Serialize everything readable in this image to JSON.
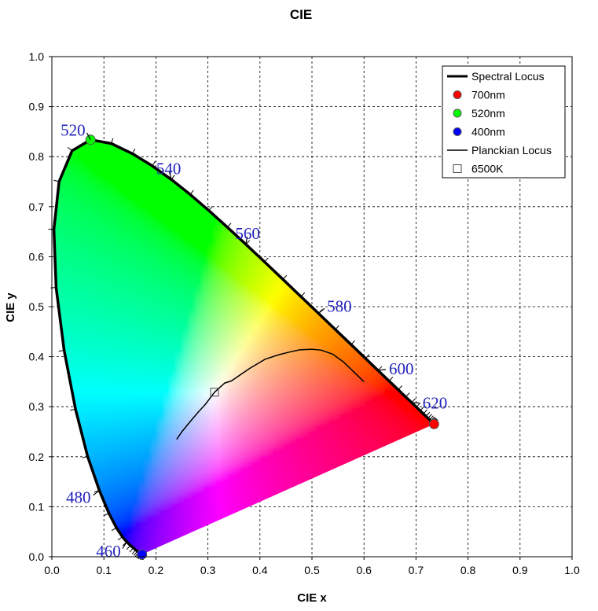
{
  "chart_data": {
    "type": "scatter",
    "title": "CIE",
    "xlabel": "CIE x",
    "ylabel": "CIE y",
    "xlim": [
      0,
      1
    ],
    "ylim": [
      0,
      1
    ],
    "x_ticks": [
      "0.0",
      "0.1",
      "0.2",
      "0.3",
      "0.4",
      "0.5",
      "0.6",
      "0.7",
      "0.8",
      "0.9",
      "1.0"
    ],
    "y_ticks": [
      "0.0",
      "0.1",
      "0.2",
      "0.3",
      "0.4",
      "0.5",
      "0.6",
      "0.7",
      "0.8",
      "0.9",
      "1.0"
    ],
    "grid": true,
    "legend_position": "top-right",
    "legend": [
      {
        "label": "Spectral Locus",
        "kind": "line",
        "color": "#000000"
      },
      {
        "label": "700nm",
        "kind": "marker",
        "color": "#ff0000"
      },
      {
        "label": "520nm",
        "kind": "marker",
        "color": "#00ff00"
      },
      {
        "label": "400nm",
        "kind": "marker",
        "color": "#0000ff"
      },
      {
        "label": "Planckian Locus",
        "kind": "thin-line",
        "color": "#000000"
      },
      {
        "label": "6500K",
        "kind": "square",
        "color": "#000000"
      }
    ],
    "spectral_locus": [
      [
        0.1741,
        0.005
      ],
      [
        0.1738,
        0.0049
      ],
      [
        0.1736,
        0.0049
      ],
      [
        0.1733,
        0.0048
      ],
      [
        0.173,
        0.0048
      ],
      [
        0.1726,
        0.0048
      ],
      [
        0.1721,
        0.0048
      ],
      [
        0.1714,
        0.0051
      ],
      [
        0.1703,
        0.0058
      ],
      [
        0.1689,
        0.0069
      ],
      [
        0.1669,
        0.0086
      ],
      [
        0.1644,
        0.0109
      ],
      [
        0.1611,
        0.0138
      ],
      [
        0.1566,
        0.0177
      ],
      [
        0.151,
        0.0227
      ],
      [
        0.144,
        0.0297
      ],
      [
        0.1355,
        0.0399
      ],
      [
        0.1241,
        0.0578
      ],
      [
        0.1096,
        0.0868
      ],
      [
        0.0913,
        0.1327
      ],
      [
        0.0687,
        0.2007
      ],
      [
        0.0454,
        0.295
      ],
      [
        0.0235,
        0.4127
      ],
      [
        0.0082,
        0.5384
      ],
      [
        0.0039,
        0.6548
      ],
      [
        0.0139,
        0.7502
      ],
      [
        0.0389,
        0.812
      ],
      [
        0.0743,
        0.8338
      ],
      [
        0.1142,
        0.8262
      ],
      [
        0.1547,
        0.8059
      ],
      [
        0.1929,
        0.7816
      ],
      [
        0.2296,
        0.7543
      ],
      [
        0.2658,
        0.7243
      ],
      [
        0.3016,
        0.6923
      ],
      [
        0.3373,
        0.6589
      ],
      [
        0.3731,
        0.6245
      ],
      [
        0.4087,
        0.5896
      ],
      [
        0.4441,
        0.5547
      ],
      [
        0.4788,
        0.5202
      ],
      [
        0.5125,
        0.4866
      ],
      [
        0.5448,
        0.4544
      ],
      [
        0.5752,
        0.4242
      ],
      [
        0.6029,
        0.3965
      ],
      [
        0.627,
        0.3725
      ],
      [
        0.6482,
        0.3514
      ],
      [
        0.6658,
        0.334
      ],
      [
        0.6801,
        0.3197
      ],
      [
        0.6915,
        0.3083
      ],
      [
        0.7006,
        0.2993
      ],
      [
        0.7079,
        0.292
      ],
      [
        0.714,
        0.2859
      ],
      [
        0.719,
        0.2809
      ],
      [
        0.723,
        0.277
      ],
      [
        0.726,
        0.274
      ],
      [
        0.7283,
        0.2717
      ],
      [
        0.73,
        0.27
      ],
      [
        0.7311,
        0.2689
      ],
      [
        0.732,
        0.268
      ],
      [
        0.7327,
        0.2673
      ],
      [
        0.7334,
        0.2666
      ],
      [
        0.734,
        0.266
      ],
      [
        0.7344,
        0.2656
      ],
      [
        0.7346,
        0.2654
      ],
      [
        0.7347,
        0.2653
      ]
    ],
    "wavelength_labels": [
      {
        "text": "460",
        "x": 0.144,
        "y": 0.0297
      },
      {
        "text": "480",
        "x": 0.0913,
        "y": 0.1327
      },
      {
        "text": "520",
        "x": 0.0743,
        "y": 0.8338
      },
      {
        "text": "540",
        "x": 0.2296,
        "y": 0.7543
      },
      {
        "text": "560",
        "x": 0.3731,
        "y": 0.6245
      },
      {
        "text": "580",
        "x": 0.5125,
        "y": 0.4866
      },
      {
        "text": "600",
        "x": 0.627,
        "y": 0.3725
      },
      {
        "text": "620",
        "x": 0.6915,
        "y": 0.3083
      }
    ],
    "points": [
      {
        "name": "700nm",
        "x": 0.7347,
        "y": 0.2653,
        "color": "#ff0000"
      },
      {
        "name": "520nm",
        "x": 0.0743,
        "y": 0.8338,
        "color": "#00ff00"
      },
      {
        "name": "400nm",
        "x": 0.1733,
        "y": 0.0048,
        "color": "#0000ff"
      }
    ],
    "planckian_locus": [
      [
        0.2399,
        0.2348
      ],
      [
        0.25,
        0.25
      ],
      [
        0.265,
        0.269
      ],
      [
        0.2806,
        0.2883
      ],
      [
        0.2952,
        0.3048
      ],
      [
        0.3127,
        0.329
      ],
      [
        0.3324,
        0.3474
      ],
      [
        0.3451,
        0.3516
      ],
      [
        0.3805,
        0.3768
      ],
      [
        0.41,
        0.395
      ],
      [
        0.4369,
        0.4041
      ],
      [
        0.46,
        0.41
      ],
      [
        0.4763,
        0.4137
      ],
      [
        0.5,
        0.415
      ],
      [
        0.5181,
        0.413
      ],
      [
        0.54,
        0.405
      ],
      [
        0.56,
        0.39
      ],
      [
        0.58,
        0.37
      ],
      [
        0.6,
        0.35
      ]
    ],
    "white_point": {
      "name": "6500K",
      "x": 0.3127,
      "y": 0.329
    }
  }
}
